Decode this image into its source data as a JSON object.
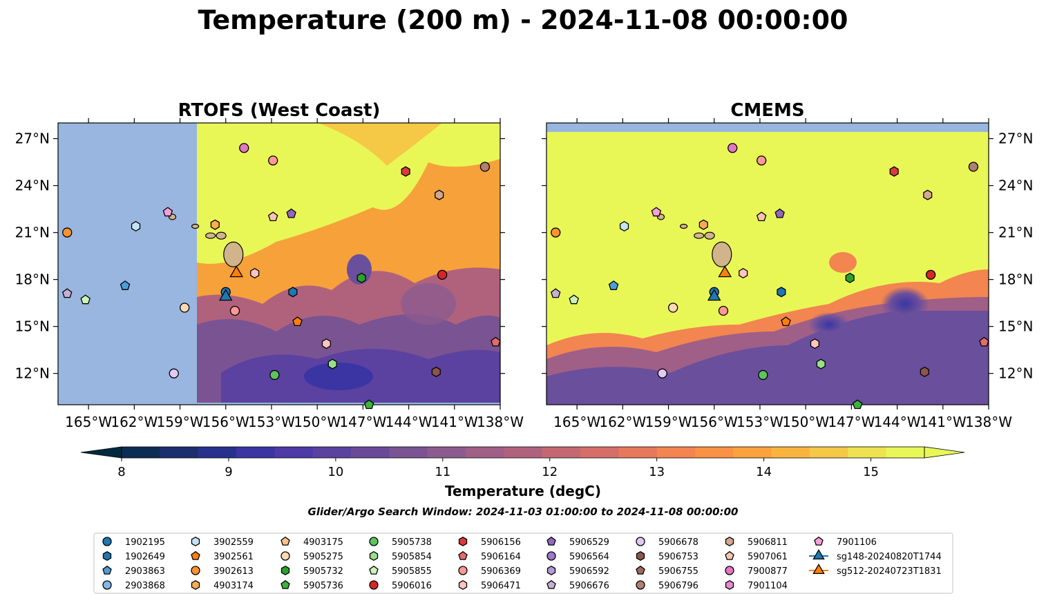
{
  "figure": {
    "suptitle": "Temperature (200 m) - 2024-11-08 00:00:00",
    "colorbar_label": "Temperature (degC)",
    "search_window": "Glider/Argo Search Window: 2024-11-03 01:00:00 to 2024-11-08 00:00:00"
  },
  "panels": [
    {
      "title": "RTOFS (West Coast)",
      "ocean_color": "#98b6df",
      "data_mask_west_of": "-157.5"
    },
    {
      "title": "CMEMS",
      "ocean_color": "#98b6df"
    }
  ],
  "colors": {
    "land": "#d2b48c",
    "warm": "#e8f756",
    "mid": "#f7a13b",
    "cool": "#a65f86",
    "cold": "#6a4f9c",
    "deep": "#3c3aa5"
  },
  "axes": {
    "lon_ticks": [
      "165°W",
      "162°W",
      "159°W",
      "156°W",
      "153°W",
      "150°W",
      "147°W",
      "144°W",
      "141°W",
      "138°W"
    ],
    "lat_ticks": [
      "27°N",
      "24°N",
      "21°N",
      "18°N",
      "15°N",
      "12°N"
    ],
    "lon_range": [
      -167,
      -138
    ],
    "lat_range": [
      10,
      28
    ]
  },
  "colorbar": {
    "ticks": [
      "8",
      "9",
      "10",
      "11",
      "12",
      "13",
      "14",
      "15"
    ],
    "min": 7.5,
    "max": 15.5,
    "step": 0.5,
    "colors": [
      "#022a3e",
      "#0c2d52",
      "#1b2f6e",
      "#27318d",
      "#3a35a2",
      "#4d3aa6",
      "#5b41a0",
      "#6a4a98",
      "#7a5393",
      "#8c5b8e",
      "#9f5f87",
      "#b0627d",
      "#c36873",
      "#d56e68",
      "#e6785c",
      "#f28550",
      "#f99244",
      "#fba23c",
      "#f9b43e",
      "#f5c845",
      "#eee251",
      "#e8f756"
    ]
  },
  "legend": {
    "columns": [
      [
        {
          "id": "1902195",
          "marker": "circle",
          "color": "#1f77b4"
        },
        {
          "id": "1902649",
          "marker": "hexagon",
          "color": "#1f77b4"
        },
        {
          "id": "2903863",
          "marker": "pentagon",
          "color": "#4c9ed9"
        },
        {
          "id": "2903868",
          "marker": "circle",
          "color": "#7fb8e6"
        }
      ],
      [
        {
          "id": "3902559",
          "marker": "hexagon",
          "color": "#c5e3f6"
        },
        {
          "id": "3902561",
          "marker": "pentagon",
          "color": "#ff7f0e"
        },
        {
          "id": "3902613",
          "marker": "circle",
          "color": "#ff922e"
        },
        {
          "id": "4903174",
          "marker": "hexagon",
          "color": "#ffaa55"
        }
      ],
      [
        {
          "id": "4903175",
          "marker": "pentagon",
          "color": "#ffc38a"
        },
        {
          "id": "5905275",
          "marker": "circle",
          "color": "#ffd9b5"
        },
        {
          "id": "5905732",
          "marker": "hexagon",
          "color": "#2ca02c"
        },
        {
          "id": "5905736",
          "marker": "pentagon",
          "color": "#3cb33c"
        }
      ],
      [
        {
          "id": "5905738",
          "marker": "circle",
          "color": "#5ec45e"
        },
        {
          "id": "5905854",
          "marker": "hexagon",
          "color": "#98df8a"
        },
        {
          "id": "5905855",
          "marker": "pentagon",
          "color": "#c9f5b8"
        },
        {
          "id": "5906016",
          "marker": "circle",
          "color": "#d62728"
        }
      ],
      [
        {
          "id": "5906156",
          "marker": "hexagon",
          "color": "#d93a3a"
        },
        {
          "id": "5906164",
          "marker": "pentagon",
          "color": "#e36b6b"
        },
        {
          "id": "5906369",
          "marker": "circle",
          "color": "#ff9896"
        },
        {
          "id": "5906471",
          "marker": "hexagon",
          "color": "#ffc4c2"
        }
      ],
      [
        {
          "id": "5906529",
          "marker": "pentagon",
          "color": "#9467bd"
        },
        {
          "id": "5906564",
          "marker": "circle",
          "color": "#9f78c8"
        },
        {
          "id": "5906592",
          "marker": "hexagon",
          "color": "#b39ad6"
        },
        {
          "id": "5906676",
          "marker": "pentagon",
          "color": "#c5b0d5"
        }
      ],
      [
        {
          "id": "5906678",
          "marker": "circle",
          "color": "#e2c9f5"
        },
        {
          "id": "5906753",
          "marker": "hexagon",
          "color": "#8c564b"
        },
        {
          "id": "5906755",
          "marker": "pentagon",
          "color": "#a0685c"
        },
        {
          "id": "5906796",
          "marker": "circle",
          "color": "#b0806f"
        }
      ],
      [
        {
          "id": "5906811",
          "marker": "hexagon",
          "color": "#d4a890"
        },
        {
          "id": "5907061",
          "marker": "pentagon",
          "color": "#f7c5ad"
        },
        {
          "id": "7900877",
          "marker": "circle",
          "color": "#e377c2"
        },
        {
          "id": "7901104",
          "marker": "hexagon",
          "color": "#e68ad0"
        }
      ],
      [
        {
          "id": "7901106",
          "marker": "pentagon",
          "color": "#f5a0d9"
        },
        {
          "id": "sg148-20240820T1744",
          "marker": "triangle",
          "color": "#1f77b4",
          "line": true
        },
        {
          "id": "sg512-20240723T1831",
          "marker": "triangle",
          "color": "#ff7f0e",
          "line": true
        }
      ]
    ]
  },
  "markers": [
    {
      "id": "7900877",
      "lon": -154.8,
      "lat": 26.4
    },
    {
      "id": "5906369",
      "lon": -152.9,
      "lat": 25.6
    },
    {
      "id": "5906156",
      "lon": -144.2,
      "lat": 24.9
    },
    {
      "id": "5906796",
      "lon": -139.0,
      "lat": 25.2
    },
    {
      "id": "5906811",
      "lon": -142.0,
      "lat": 23.4
    },
    {
      "id": "5906529",
      "lon": -151.7,
      "lat": 22.2
    },
    {
      "id": "5907061",
      "lon": -152.9,
      "lat": 22.0
    },
    {
      "id": "7901106",
      "lon": -159.8,
      "lat": 22.3
    },
    {
      "id": "3902559",
      "lon": -161.9,
      "lat": 21.4
    },
    {
      "id": "3902613",
      "lon": -166.4,
      "lat": 21.0
    },
    {
      "id": "4903174",
      "lon": -156.7,
      "lat": 21.5
    },
    {
      "id": "5906016",
      "lon": -141.8,
      "lat": 18.3
    },
    {
      "id": "5905732",
      "lon": -147.1,
      "lat": 18.1
    },
    {
      "id": "1902649",
      "lon": -151.6,
      "lat": 17.2
    },
    {
      "id": "2903863",
      "lon": -162.6,
      "lat": 17.6
    },
    {
      "id": "5906676",
      "lon": -166.4,
      "lat": 17.1
    },
    {
      "id": "5905855",
      "lon": -165.2,
      "lat": 16.7
    },
    {
      "id": "5905275",
      "lon": -158.7,
      "lat": 16.2
    },
    {
      "id": "5906471",
      "lon": -154.1,
      "lat": 18.4
    },
    {
      "id": "5906369b",
      "lon": -155.4,
      "lat": 16.0
    },
    {
      "id": "1902195",
      "lon": -156.0,
      "lat": 17.2
    },
    {
      "id": "3902561",
      "lon": -151.3,
      "lat": 15.3
    },
    {
      "id": "5906471b",
      "lon": -149.4,
      "lat": 13.9
    },
    {
      "id": "5905854",
      "lon": -149.0,
      "lat": 12.6
    },
    {
      "id": "5905738",
      "lon": -152.8,
      "lat": 11.9
    },
    {
      "id": "5906678",
      "lon": -159.4,
      "lat": 12.0
    },
    {
      "id": "5906753",
      "lon": -142.2,
      "lat": 12.1
    },
    {
      "id": "5906164",
      "lon": -138.3,
      "lat": 14.0
    },
    {
      "id": "5905736",
      "lon": -146.6,
      "lat": 10.0
    }
  ],
  "gliders": [
    {
      "id": "sg148-20240820T1744",
      "lon": -156.0,
      "lat": 16.9
    },
    {
      "id": "sg512-20240723T1831",
      "lon": -155.3,
      "lat": 18.4
    }
  ]
}
